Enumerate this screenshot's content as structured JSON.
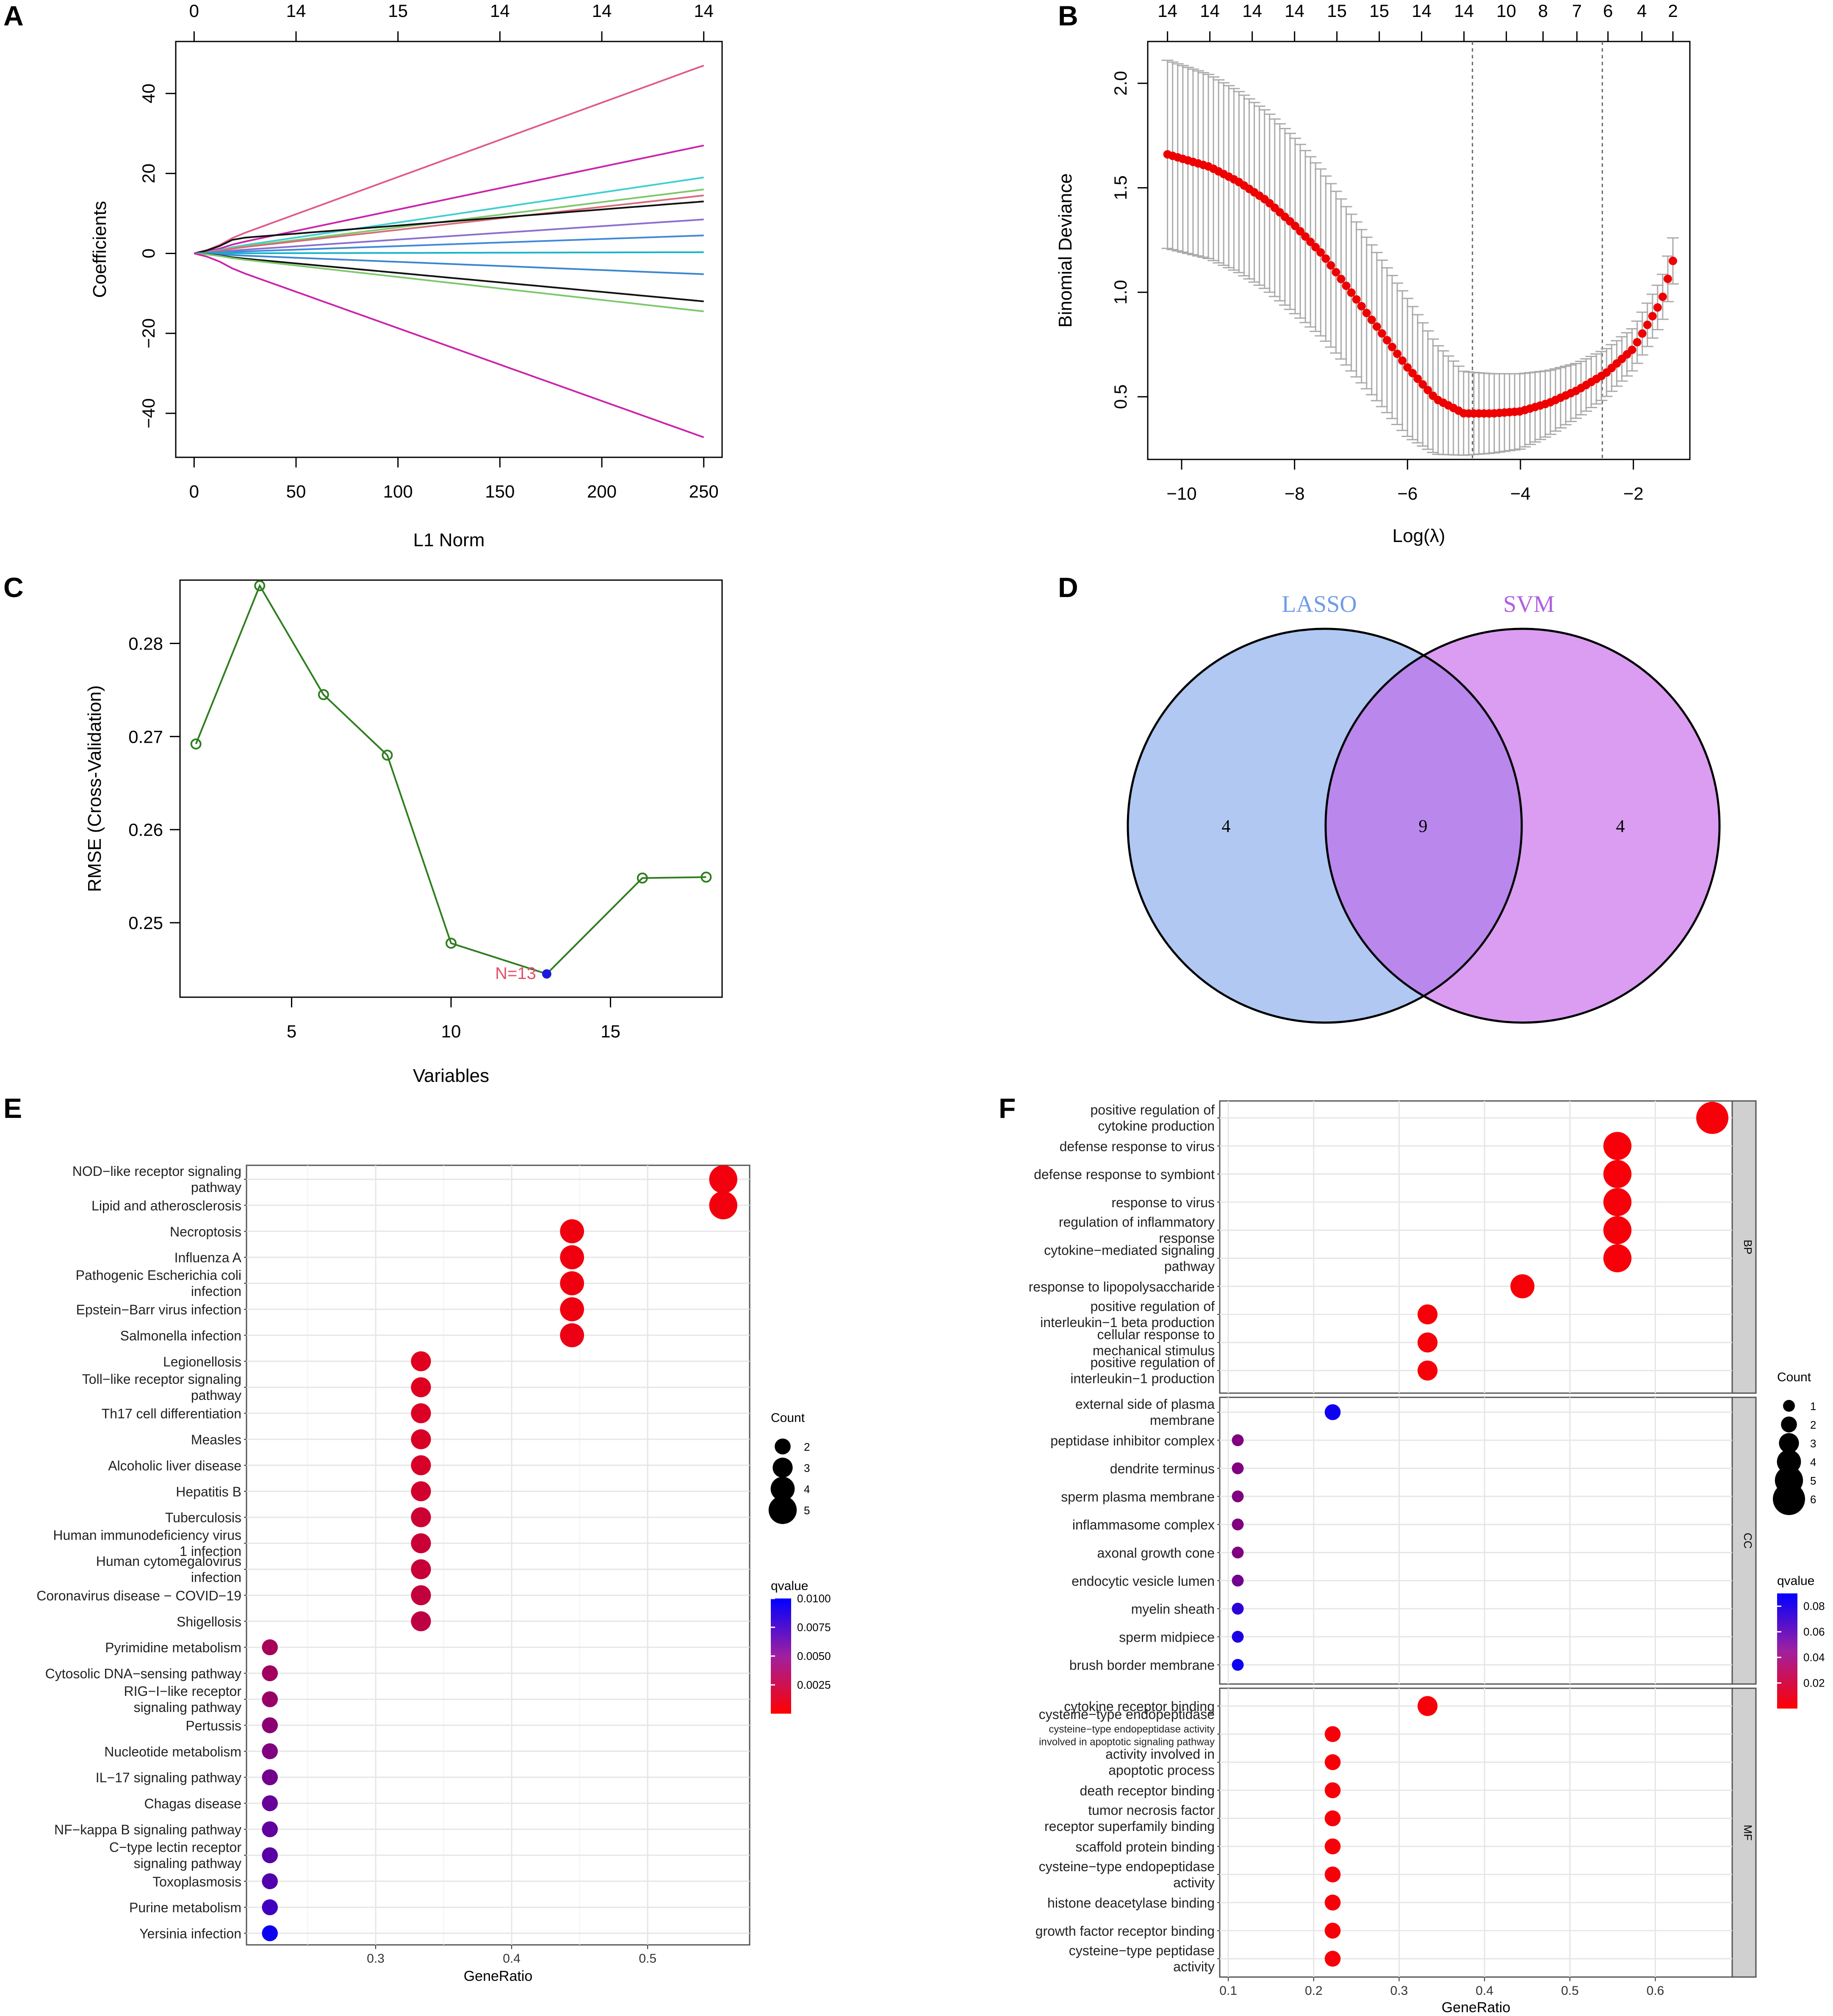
{
  "panel_labels": [
    "A",
    "B",
    "C",
    "D",
    "E",
    "F"
  ],
  "chart_data": [
    {
      "panel": "A",
      "type": "line",
      "title": "",
      "xlabel": "L1 Norm",
      "ylabel": "Coefficients",
      "xlim": [
        0,
        250
      ],
      "ylim": [
        -46,
        47
      ],
      "xticks": [
        0,
        50,
        100,
        150,
        200,
        250
      ],
      "yticks": [
        -40,
        -20,
        0,
        20,
        40
      ],
      "top_axis_ticks": [
        0,
        50,
        100,
        150,
        200,
        250
      ],
      "top_axis_labels": [
        "0",
        "14",
        "15",
        "14",
        "14",
        "14"
      ],
      "series": [
        {
          "name": "path 1",
          "color": "#e05a8a",
          "end": 47
        },
        {
          "name": "path 2",
          "color": "#cc22aa",
          "end": 27
        },
        {
          "name": "path 3",
          "color": "#3ecfd0",
          "end": 19
        },
        {
          "name": "path 4",
          "color": "#7cc86a",
          "end": 16
        },
        {
          "name": "path 5",
          "color": "#d86a7a",
          "end": 14.5
        },
        {
          "name": "path 6",
          "color": "#111111",
          "end": 13
        },
        {
          "name": "path 7",
          "color": "#8a6fd0",
          "end": 8.5
        },
        {
          "name": "path 8",
          "color": "#3f8ad8",
          "end": 4.5
        },
        {
          "name": "path 9",
          "color": "#18b3c8",
          "end": 0.3
        },
        {
          "name": "path 10",
          "color": "#3a86d0",
          "end": -5.2
        },
        {
          "name": "path 11",
          "color": "#111111",
          "end": -12
        },
        {
          "name": "path 12",
          "color": "#7cc86a",
          "end": -14.5
        },
        {
          "name": "path 13",
          "color": "#cc22aa",
          "end": -46
        }
      ]
    },
    {
      "panel": "B",
      "type": "scatter",
      "title": "",
      "xlabel": "Log(λ)",
      "ylabel": "Binomial Deviance",
      "xlim": [
        -10.6,
        -1.0
      ],
      "ylim": [
        0.2,
        2.2
      ],
      "xticks": [
        -10,
        -8,
        -6,
        -4,
        -2
      ],
      "yticks": [
        0.5,
        1.0,
        1.5,
        2.0
      ],
      "x_start": -10.25,
      "x_end": -1.3,
      "n_points": 100,
      "vlines": [
        -4.85,
        -2.55
      ],
      "top_axis_ticks": [
        -10.25,
        -9.5,
        -8.75,
        -8.0,
        -7.25,
        -6.5,
        -5.75,
        -5.0,
        -4.25,
        -3.6,
        -3.0,
        -2.45,
        -1.85,
        -1.3
      ],
      "top_axis_labels": [
        "14",
        "14",
        "14",
        "14",
        "15",
        "15",
        "14",
        "14",
        "10",
        "8",
        "7",
        "6",
        "4",
        "2"
      ],
      "curve_knots": {
        "x": [
          -10.25,
          -9.5,
          -9.0,
          -8.5,
          -8.0,
          -7.5,
          -7.0,
          -6.5,
          -6.0,
          -5.5,
          -5.0,
          -4.5,
          -4.0,
          -3.5,
          -3.0,
          -2.5,
          -2.0,
          -1.5,
          -1.3
        ],
        "y": [
          1.66,
          1.6,
          1.53,
          1.44,
          1.32,
          1.18,
          1.0,
          0.82,
          0.64,
          0.49,
          0.42,
          0.42,
          0.43,
          0.47,
          0.53,
          0.61,
          0.73,
          0.96,
          1.15
        ]
      },
      "error_knots": {
        "x": [
          -10.25,
          -8.0,
          -6.0,
          -5.0,
          -4.0,
          -3.0,
          -2.0,
          -1.3
        ],
        "se": [
          0.45,
          0.42,
          0.33,
          0.2,
          0.18,
          0.13,
          0.1,
          0.11
        ]
      }
    },
    {
      "panel": "C",
      "type": "line",
      "title": "",
      "xlabel": "Variables",
      "ylabel": "RMSE (Cross-Validation)",
      "xlim": [
        1.5,
        18.5
      ],
      "ylim": [
        0.242,
        0.2868
      ],
      "xticks": [
        5,
        10,
        15
      ],
      "yticks": [
        0.25,
        0.26,
        0.27,
        0.28
      ],
      "x": [
        2,
        4,
        6,
        8,
        10,
        13,
        16,
        18
      ],
      "y": [
        0.2692,
        0.2862,
        0.2745,
        0.268,
        0.2478,
        0.2445,
        0.2548,
        0.2549
      ],
      "highlight": {
        "x": 13,
        "y": 0.2445,
        "label": "N=13"
      }
    },
    {
      "panel": "D",
      "type": "venn",
      "sets": [
        {
          "name": "LASSO",
          "color": "#6f9be8",
          "text_color": "#6f9be8"
        },
        {
          "name": "SVM",
          "color": "#c25ce8",
          "text_color": "#b05fe0"
        }
      ],
      "counts": {
        "left_only": "4",
        "intersection": "9",
        "right_only": "4"
      }
    },
    {
      "panel": "E",
      "type": "scatter",
      "title": "",
      "xlabel": "GeneRatio",
      "xlim": [
        0.205,
        0.575
      ],
      "xticks": [
        0.3,
        0.4,
        0.5
      ],
      "categories": [
        {
          "label": [
            "NOD−like receptor signaling",
            "pathway"
          ],
          "x": 0.5556,
          "count": 5,
          "q": 0.0005
        },
        {
          "label": [
            "Lipid and atherosclerosis"
          ],
          "x": 0.5556,
          "count": 5,
          "q": 0.0005
        },
        {
          "label": [
            "Necroptosis"
          ],
          "x": 0.4444,
          "count": 4,
          "q": 0.0006
        },
        {
          "label": [
            "Influenza A"
          ],
          "x": 0.4444,
          "count": 4,
          "q": 0.0006
        },
        {
          "label": [
            "Pathogenic Escherichia coli",
            "infection"
          ],
          "x": 0.4444,
          "count": 4,
          "q": 0.0006
        },
        {
          "label": [
            "Epstein−Barr virus infection"
          ],
          "x": 0.4444,
          "count": 4,
          "q": 0.0006
        },
        {
          "label": [
            "Salmonella infection"
          ],
          "x": 0.4444,
          "count": 4,
          "q": 0.0008
        },
        {
          "label": [
            "Legionellosis"
          ],
          "x": 0.3333,
          "count": 3,
          "q": 0.0012
        },
        {
          "label": [
            "Toll−like receptor signaling",
            "pathway"
          ],
          "x": 0.3333,
          "count": 3,
          "q": 0.0013
        },
        {
          "label": [
            "Th17 cell differentiation"
          ],
          "x": 0.3333,
          "count": 3,
          "q": 0.0014
        },
        {
          "label": [
            "Measles"
          ],
          "x": 0.3333,
          "count": 3,
          "q": 0.0015
        },
        {
          "label": [
            "Alcoholic liver disease"
          ],
          "x": 0.3333,
          "count": 3,
          "q": 0.0016
        },
        {
          "label": [
            "Hepatitis B"
          ],
          "x": 0.3333,
          "count": 3,
          "q": 0.0018
        },
        {
          "label": [
            "Tuberculosis"
          ],
          "x": 0.3333,
          "count": 3,
          "q": 0.002
        },
        {
          "label": [
            "Human immunodeficiency virus",
            "1 infection"
          ],
          "x": 0.3333,
          "count": 3,
          "q": 0.0021
        },
        {
          "label": [
            "Human cytomegalovirus",
            "infection"
          ],
          "x": 0.3333,
          "count": 3,
          "q": 0.0022
        },
        {
          "label": [
            "Coronavirus disease − COVID−19"
          ],
          "x": 0.3333,
          "count": 3,
          "q": 0.0024
        },
        {
          "label": [
            "Shigellosis"
          ],
          "x": 0.3333,
          "count": 3,
          "q": 0.0026
        },
        {
          "label": [
            "Pyrimidine metabolism"
          ],
          "x": 0.2222,
          "count": 2,
          "q": 0.0035
        },
        {
          "label": [
            "Cytosolic DNA−sensing pathway"
          ],
          "x": 0.2222,
          "count": 2,
          "q": 0.0037
        },
        {
          "label": [
            "RIG−I−like receptor",
            "signaling pathway"
          ],
          "x": 0.2222,
          "count": 2,
          "q": 0.004
        },
        {
          "label": [
            "Pertussis"
          ],
          "x": 0.2222,
          "count": 2,
          "q": 0.0045
        },
        {
          "label": [
            "Nucleotide metabolism"
          ],
          "x": 0.2222,
          "count": 2,
          "q": 0.005
        },
        {
          "label": [
            "IL−17 signaling pathway"
          ],
          "x": 0.2222,
          "count": 2,
          "q": 0.0055
        },
        {
          "label": [
            "Chagas disease"
          ],
          "x": 0.2222,
          "count": 2,
          "q": 0.006
        },
        {
          "label": [
            "NF−kappa B signaling pathway"
          ],
          "x": 0.2222,
          "count": 2,
          "q": 0.0062
        },
        {
          "label": [
            "C−type lectin receptor",
            "signaling pathway"
          ],
          "x": 0.2222,
          "count": 2,
          "q": 0.0065
        },
        {
          "label": [
            "Toxoplasmosis"
          ],
          "x": 0.2222,
          "count": 2,
          "q": 0.0068
        },
        {
          "label": [
            "Purine metabolism"
          ],
          "x": 0.2222,
          "count": 2,
          "q": 0.0075
        },
        {
          "label": [
            "Yersinia infection"
          ],
          "x": 0.2222,
          "count": 2,
          "q": 0.0095
        }
      ],
      "size_legend": {
        "title": "Count",
        "values": [
          2,
          3,
          4,
          5
        ]
      },
      "color_legend": {
        "title": "qvalue",
        "min": 0.0,
        "max": 0.01,
        "ticks": [
          0.01,
          0.0075,
          0.005,
          0.0025
        ],
        "tick_labels": [
          "0.0100",
          "0.0075",
          "0.0050",
          "0.0025"
        ],
        "low_color": "#ff0000",
        "high_color": "#0000ff"
      }
    },
    {
      "panel": "F",
      "type": "scatter",
      "title": "",
      "xlabel": "GeneRatio",
      "xlim": [
        0.09,
        0.69
      ],
      "xticks": [
        0.1,
        0.2,
        0.3,
        0.4,
        0.5,
        0.6
      ],
      "xtick_labels": [
        "0.1",
        "0.2",
        "0.3",
        "0.4",
        "0.5",
        "0.6"
      ],
      "facets": [
        {
          "name": "BP",
          "terms": [
            {
              "label": [
                "positive regulation of",
                "cytokine production"
              ],
              "x": 0.6667,
              "count": 6,
              "q": 0.003
            },
            {
              "label": [
                "defense response to virus"
              ],
              "x": 0.5556,
              "count": 5,
              "q": 0.003
            },
            {
              "label": [
                "defense response to symbiont"
              ],
              "x": 0.5556,
              "count": 5,
              "q": 0.003
            },
            {
              "label": [
                "response to virus"
              ],
              "x": 0.5556,
              "count": 5,
              "q": 0.003
            },
            {
              "label": [
                "regulation of inflammatory",
                "response"
              ],
              "x": 0.5556,
              "count": 5,
              "q": 0.003
            },
            {
              "label": [
                "cytokine−mediated signaling",
                "pathway"
              ],
              "x": 0.5556,
              "count": 5,
              "q": 0.003
            },
            {
              "label": [
                "response to lipopolysaccharide"
              ],
              "x": 0.4444,
              "count": 4,
              "q": 0.003
            },
            {
              "label": [
                "positive regulation of",
                "interleukin−1 beta production"
              ],
              "x": 0.3333,
              "count": 3,
              "q": 0.003
            },
            {
              "label": [
                "cellular response to",
                "mechanical stimulus"
              ],
              "x": 0.3333,
              "count": 3,
              "q": 0.003
            },
            {
              "label": [
                "positive regulation of",
                "interleukin−1 production"
              ],
              "x": 0.3333,
              "count": 3,
              "q": 0.003
            }
          ]
        },
        {
          "name": "CC",
          "terms": [
            {
              "label": [
                "external side of plasma",
                "membrane"
              ],
              "x": 0.2222,
              "count": 2,
              "q": 0.085
            },
            {
              "label": [
                "peptidase inhibitor complex"
              ],
              "x": 0.1111,
              "count": 1,
              "q": 0.045
            },
            {
              "label": [
                "dendrite terminus"
              ],
              "x": 0.1111,
              "count": 1,
              "q": 0.045
            },
            {
              "label": [
                "sperm plasma membrane"
              ],
              "x": 0.1111,
              "count": 1,
              "q": 0.045
            },
            {
              "label": [
                "inflammasome complex"
              ],
              "x": 0.1111,
              "count": 1,
              "q": 0.045
            },
            {
              "label": [
                "axonal growth cone"
              ],
              "x": 0.1111,
              "count": 1,
              "q": 0.045
            },
            {
              "label": [
                "endocytic vesicle lumen"
              ],
              "x": 0.1111,
              "count": 1,
              "q": 0.05
            },
            {
              "label": [
                "myelin sheath"
              ],
              "x": 0.1111,
              "count": 1,
              "q": 0.075
            },
            {
              "label": [
                "sperm midpiece"
              ],
              "x": 0.1111,
              "count": 1,
              "q": 0.08
            },
            {
              "label": [
                "brush border membrane"
              ],
              "x": 0.1111,
              "count": 1,
              "q": 0.085
            }
          ]
        },
        {
          "name": "MF",
          "terms": [
            {
              "label": [
                "cytokine receptor binding"
              ],
              "x": 0.3333,
              "count": 3,
              "q": 0.003
            },
            {
              "label": [
                "cysteine−type endopeptidase"
              ],
              "label_small": [
                "cysteine−type endopeptidase activity",
                "involved in apoptotic signaling pathway"
              ],
              "x": 0.2222,
              "count": 2,
              "q": 0.003
            },
            {
              "label": [
                "activity involved in",
                "apoptotic process"
              ],
              "x": 0.2222,
              "count": 2,
              "q": 0.003
            },
            {
              "label": [
                "death receptor binding"
              ],
              "x": 0.2222,
              "count": 2,
              "q": 0.003
            },
            {
              "label": [
                "tumor necrosis factor",
                "receptor superfamily binding"
              ],
              "x": 0.2222,
              "count": 2,
              "q": 0.003
            },
            {
              "label": [
                "scaffold protein binding"
              ],
              "x": 0.2222,
              "count": 2,
              "q": 0.003
            },
            {
              "label": [
                "cysteine−type endopeptidase",
                "activity"
              ],
              "x": 0.2222,
              "count": 2,
              "q": 0.003
            },
            {
              "label": [
                "histone deacetylase binding"
              ],
              "x": 0.2222,
              "count": 2,
              "q": 0.003
            },
            {
              "label": [
                "growth factor receptor binding"
              ],
              "x": 0.2222,
              "count": 2,
              "q": 0.003
            },
            {
              "label": [
                "cysteine−type peptidase",
                "activity"
              ],
              "x": 0.2222,
              "count": 2,
              "q": 0.003
            }
          ]
        }
      ],
      "size_legend": {
        "title": "Count",
        "values": [
          1,
          2,
          3,
          4,
          5,
          6
        ]
      },
      "color_legend": {
        "title": "qvalue",
        "min": 0.0,
        "max": 0.09,
        "ticks": [
          0.08,
          0.06,
          0.04,
          0.02
        ],
        "tick_labels": [
          "0.08",
          "0.06",
          "0.04",
          "0.02"
        ],
        "low_color": "#ff0000",
        "high_color": "#0000ff"
      }
    }
  ]
}
